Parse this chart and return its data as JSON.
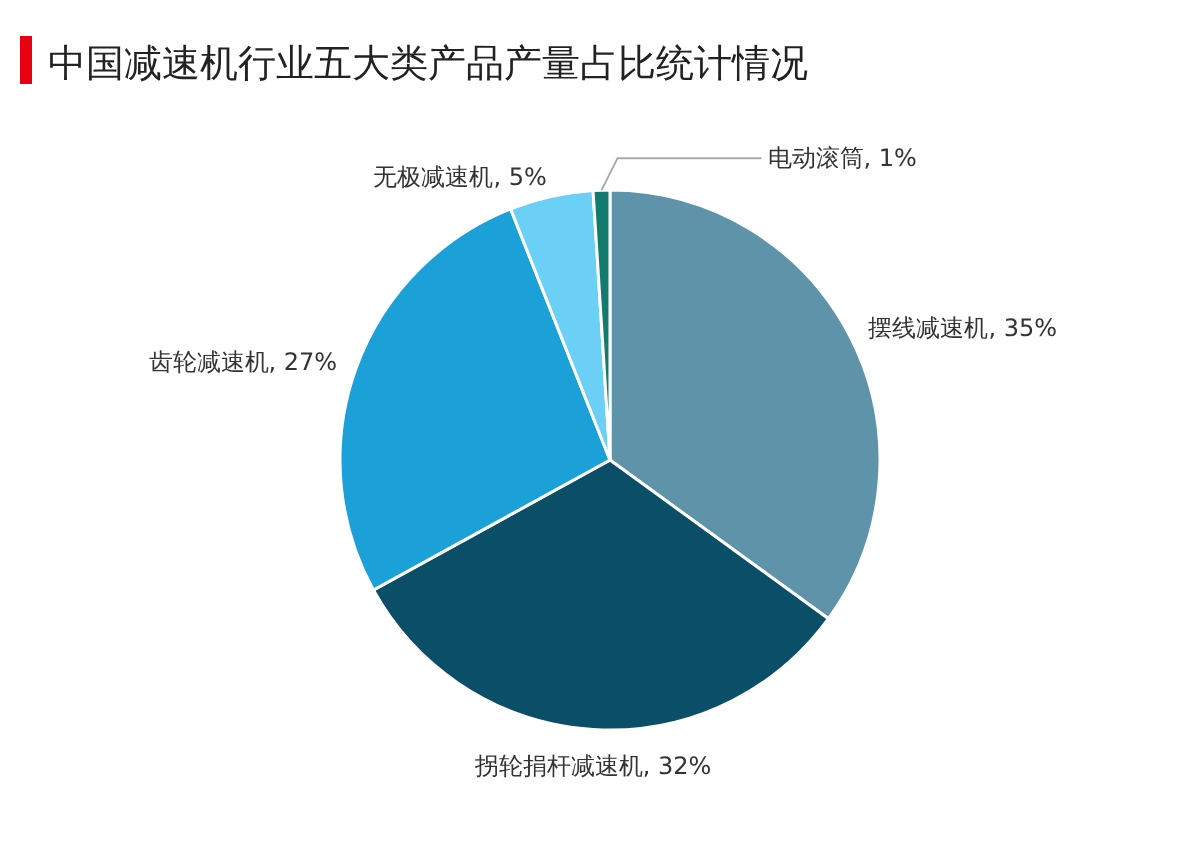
{
  "chart_data": {
    "type": "pie",
    "title": "中国减速机行业五大类产品产量占比统计情况",
    "categories": [
      "摆线减速机",
      "拐轮捐杆减速机",
      "齿轮减速机",
      "无极减速机",
      "电动滚筒"
    ],
    "values": [
      35,
      32,
      27,
      5,
      1
    ],
    "value_labels": [
      "35%",
      "32%",
      "27%",
      "5%",
      "1%"
    ],
    "colors": [
      "#5f93aa",
      "#0b4e68",
      "#1ba0d8",
      "#6ccff5",
      "#137a6e"
    ]
  }
}
